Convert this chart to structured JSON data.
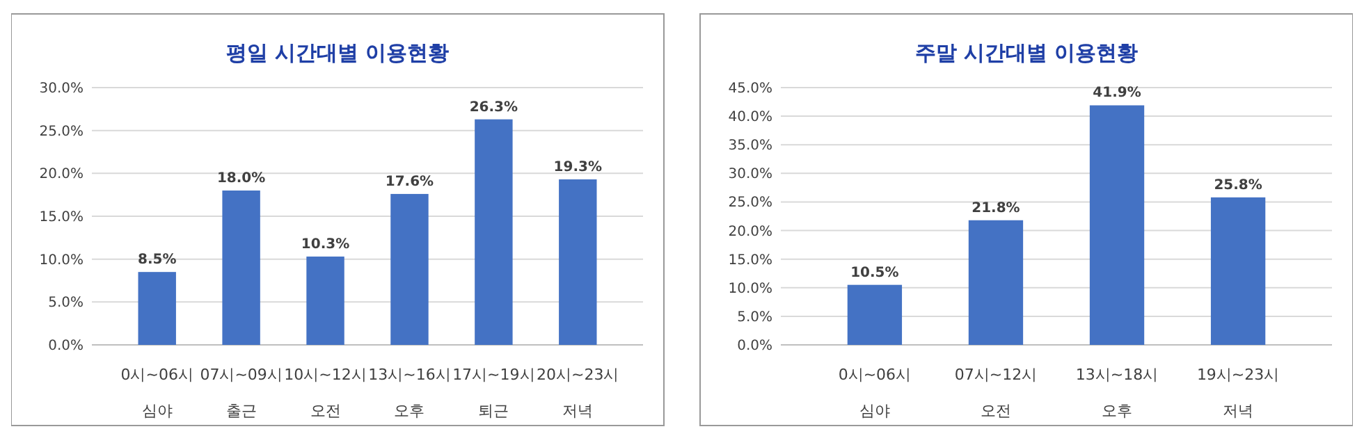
{
  "chart_data": [
    {
      "type": "bar",
      "title": "평일 시간대별 이용현황",
      "categories": [
        "0시~06시\n심야",
        "07시~09시\n출근",
        "10시~12시\n오전",
        "13시~16시\n오후",
        "17시~19시\n퇴근",
        "20시~23시\n저녁"
      ],
      "values": [
        8.5,
        18.0,
        10.3,
        17.6,
        26.3,
        19.3
      ],
      "value_labels": [
        "8.5%",
        "18.0%",
        "10.3%",
        "17.6%",
        "26.3%",
        "19.3%"
      ],
      "color": "#4472c4",
      "ylim": [
        0,
        30
      ],
      "yticks": [
        {
          "value": 0,
          "label": "0.0%"
        },
        {
          "value": 5,
          "label": "5.0%"
        },
        {
          "value": 10,
          "label": "10.0%"
        },
        {
          "value": 15,
          "label": "15.0%"
        },
        {
          "value": 20,
          "label": "20.0%"
        },
        {
          "value": 25,
          "label": "25.0%"
        },
        {
          "value": 30,
          "label": "30.0%"
        }
      ],
      "grid": "y"
    },
    {
      "type": "bar",
      "title": "주말 시간대별 이용현황",
      "categories": [
        "0시~06시\n심야",
        "07시~12시\n오전",
        "13시~18시\n오후",
        "19시~23시\n저녁"
      ],
      "values": [
        10.5,
        21.8,
        41.9,
        25.8
      ],
      "value_labels": [
        "10.5%",
        "21.8%",
        "41.9%",
        "25.8%"
      ],
      "color": "#4472c4",
      "ylim": [
        0,
        45
      ],
      "yticks": [
        {
          "value": 0,
          "label": "0.0%"
        },
        {
          "value": 5,
          "label": "5.0%"
        },
        {
          "value": 10,
          "label": "10.0%"
        },
        {
          "value": 15,
          "label": "15.0%"
        },
        {
          "value": 20,
          "label": "20.0%"
        },
        {
          "value": 25,
          "label": "25.0%"
        },
        {
          "value": 30,
          "label": "30.0%"
        },
        {
          "value": 35,
          "label": "35.0%"
        },
        {
          "value": 40,
          "label": "40.0%"
        },
        {
          "value": 45,
          "label": "45.0%"
        }
      ],
      "grid": "y"
    }
  ]
}
